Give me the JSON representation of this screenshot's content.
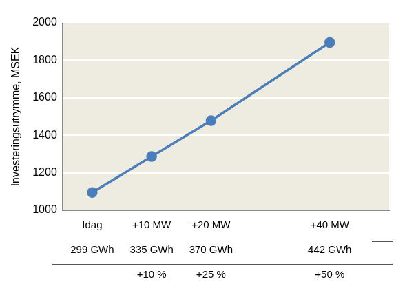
{
  "chart_data": {
    "type": "line",
    "x": [
      0,
      10,
      20,
      40
    ],
    "values": [
      1095,
      1287,
      1478,
      1895
    ],
    "color": "#4a7ebb",
    "marker": "circle",
    "y_label": "Investeringsutrymme, MSEK",
    "xlim": [
      -5,
      50
    ],
    "xticks": [
      {
        "value": 0,
        "label": "Idag"
      },
      {
        "value": 10,
        "label": "+10 MW"
      },
      {
        "value": 20,
        "label": "+20 MW"
      },
      {
        "value": 40,
        "label": "+40 MW"
      }
    ],
    "tick_rows": [
      [
        "299 GWh",
        "335 GWh",
        "370 GWh",
        "442 GWh"
      ],
      [
        null,
        "+10 %",
        "+25 %",
        "+50 %"
      ]
    ],
    "ylim": [
      1000,
      2000
    ],
    "yticks": [
      1000,
      1200,
      1400,
      1600,
      1800,
      2000
    ],
    "grid": true
  }
}
